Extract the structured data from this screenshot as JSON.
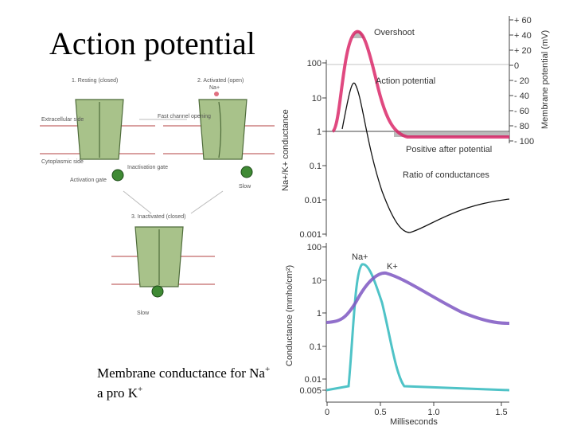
{
  "slide": {
    "title": "Action potential",
    "caption": {
      "line1": "Membrane conductance for Na",
      "line1_sup": "+",
      "line2": "a pro K",
      "line2_sup": "+"
    }
  },
  "channel_figure": {
    "state1": "1. Resting (closed)",
    "state2": "2. Activated (open)",
    "state3": "3. Inactivated (closed)",
    "extracellular": "Extracellular side",
    "cytoplasmic": "Cytoplasmic side",
    "fast": "Fast channel opening",
    "activation_gate": "Activation gate",
    "inactivation_gate": "Inactivation gate",
    "slow1": "Slow",
    "slow2": "Slow",
    "na": "Na+"
  },
  "graph": {
    "overshoot": "Overshoot",
    "action_potential": "Action potential",
    "after_potential": "Positive after potential",
    "ratio": "Ratio of conductances",
    "y_upper_label": "Na+/K+ conductance",
    "y_lower_label": "Conductance (mmho/cm²)",
    "y_right_label": "Membrane potential (mV)",
    "x_label": "Milliseconds",
    "na_curve": "Na+",
    "k_curve": "K+",
    "upper_ticks": [
      "100",
      "10",
      "1",
      "0.1",
      "0.01",
      "0.001"
    ],
    "lower_ticks": [
      "100",
      "10",
      "1",
      "0.1",
      "0.01",
      "0.005"
    ],
    "right_ticks": [
      "+ 60",
      "+ 40",
      "+ 20",
      "0",
      "- 20",
      "- 40",
      "- 60",
      "- 80",
      "- 100"
    ],
    "x_ticks": [
      "0",
      "0.5",
      "1.0",
      "1.5"
    ]
  }
}
